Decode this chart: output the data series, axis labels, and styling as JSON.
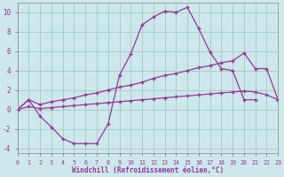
{
  "background_color": "#cce8ea",
  "grid_color": "#aacccc",
  "line_color": "#993399",
  "xlim": [
    0,
    23
  ],
  "ylim": [
    -4.5,
    11.0
  ],
  "xticks": [
    0,
    1,
    2,
    3,
    4,
    5,
    6,
    7,
    8,
    9,
    10,
    11,
    12,
    13,
    14,
    15,
    16,
    17,
    18,
    19,
    20,
    21,
    22,
    23
  ],
  "yticks": [
    -4,
    -2,
    0,
    2,
    4,
    6,
    8,
    10
  ],
  "xlabel": "Windchill (Refroidissement éolien,°C)",
  "line1_x": [
    0,
    1,
    2,
    3,
    4,
    5,
    6,
    7,
    8,
    9,
    10,
    11,
    12,
    13,
    14,
    15,
    16,
    17,
    18,
    19,
    20,
    21,
    22,
    23
  ],
  "line1_y": [
    0,
    1.0,
    -0.7,
    -1.8,
    -3.0,
    -3.5,
    -3.5,
    -3.5,
    -1.5,
    3.5,
    5.7,
    8.7,
    9.5,
    10.1,
    10.0,
    10.5,
    8.3,
    5.9,
    4.2,
    4.0,
    1.0,
    1.0,
    null,
    null
  ],
  "line2_x": [
    0,
    1,
    2,
    3,
    4,
    5,
    6,
    7,
    8,
    9,
    10,
    11,
    12,
    13,
    14,
    15,
    16,
    17,
    18,
    19,
    20,
    21,
    22,
    23
  ],
  "line2_y": [
    0,
    1.0,
    0.5,
    0.8,
    1.0,
    1.2,
    1.5,
    1.7,
    2.0,
    2.3,
    2.5,
    2.8,
    3.2,
    3.5,
    3.7,
    4.0,
    4.3,
    4.5,
    4.8,
    5.0,
    5.8,
    4.2,
    4.2,
    1.0
  ],
  "line3_x": [
    0,
    1,
    2,
    3,
    4,
    5,
    6,
    7,
    8,
    9,
    10,
    11,
    12,
    13,
    14,
    15,
    16,
    17,
    18,
    19,
    20,
    21,
    22,
    23
  ],
  "line3_y": [
    0,
    0.3,
    0.1,
    0.2,
    0.3,
    0.4,
    0.5,
    0.6,
    0.7,
    0.8,
    0.9,
    1.0,
    1.1,
    1.2,
    1.3,
    1.4,
    1.5,
    1.6,
    1.7,
    1.8,
    1.9,
    1.8,
    1.5,
    1.0
  ]
}
